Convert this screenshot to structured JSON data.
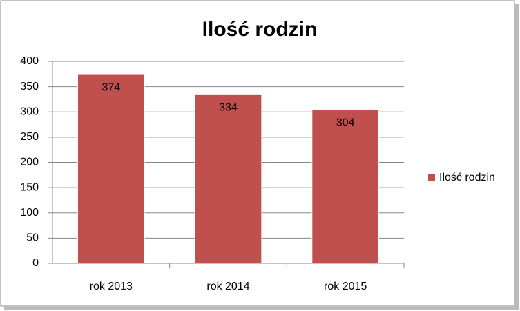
{
  "chart_data": {
    "type": "bar",
    "title": "Ilość rodzin",
    "categories": [
      "rok 2013",
      "rok 2014",
      "rok 2015"
    ],
    "series": [
      {
        "name": "Ilość rodzin",
        "color": "#c0504d",
        "values": [
          374,
          334,
          304
        ]
      }
    ],
    "ylim": [
      0,
      400
    ],
    "yticks": [
      0,
      50,
      100,
      150,
      200,
      250,
      300,
      350,
      400
    ],
    "grid": true,
    "legend": "right",
    "data_labels": true
  }
}
